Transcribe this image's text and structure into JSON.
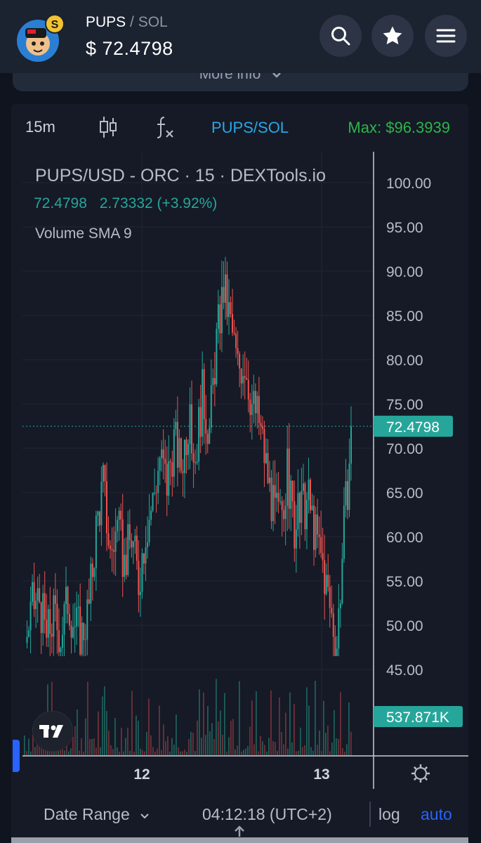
{
  "header": {
    "base_symbol": "PUPS",
    "separator": "/",
    "quote_symbol": "SOL",
    "price": "$ 72.4798",
    "logo_icon": "pups-token-logo",
    "buttons": [
      "search-icon",
      "star-icon",
      "menu-icon"
    ]
  },
  "more_info": {
    "label": "More info"
  },
  "toolbar": {
    "interval": "15m",
    "candle_icon": "candlestick-icon",
    "indicator_icon": "fx-icon",
    "pair": "PUPS/SOL",
    "max_label": "Max:",
    "max_value": "$96.3939"
  },
  "legend": {
    "title": "PUPS/USD - ORC · 15 · DEXTools.io",
    "last_price": "72.4798",
    "change": "2.73332 (+3.92%)",
    "volume_label": "Volume SMA 9"
  },
  "chart_data": {
    "type": "candlestick",
    "title": "PUPS/USD - ORC · 15 · DEXTools.io",
    "ylim": [
      41,
      102
    ],
    "y_ticks": [
      "100.00",
      "95.00",
      "90.00",
      "85.00",
      "80.00",
      "75.00",
      "70.00",
      "65.00",
      "60.00",
      "55.00",
      "50.00",
      "45.00"
    ],
    "x_ticks": [
      "12",
      "13"
    ],
    "last_price": 72.4798,
    "last_price_label": "72.4798",
    "volume_label": "537.871K",
    "up_color": "#26a69a",
    "down_color": "#ef5350",
    "price_path": [
      [
        0,
        48
      ],
      [
        4,
        52
      ],
      [
        8,
        53
      ],
      [
        12,
        48.5
      ],
      [
        16,
        51
      ],
      [
        20,
        49
      ],
      [
        24,
        53
      ],
      [
        28,
        50
      ],
      [
        32,
        49
      ],
      [
        36,
        52
      ],
      [
        40,
        61
      ],
      [
        44,
        66
      ],
      [
        48,
        58
      ],
      [
        52,
        61
      ],
      [
        56,
        57
      ],
      [
        60,
        60
      ],
      [
        64,
        55
      ],
      [
        68,
        61
      ],
      [
        72,
        64
      ],
      [
        76,
        69
      ],
      [
        80,
        66
      ],
      [
        84,
        71
      ],
      [
        88,
        68
      ],
      [
        92,
        73
      ],
      [
        96,
        69
      ],
      [
        100,
        76
      ],
      [
        104,
        72
      ],
      [
        108,
        82
      ],
      [
        112,
        88
      ],
      [
        116,
        84
      ],
      [
        120,
        79
      ],
      [
        124,
        80
      ],
      [
        128,
        75
      ],
      [
        132,
        73
      ],
      [
        136,
        68
      ],
      [
        140,
        63
      ],
      [
        144,
        62
      ],
      [
        148,
        67
      ],
      [
        152,
        61
      ],
      [
        156,
        63
      ],
      [
        160,
        64
      ],
      [
        164,
        60
      ],
      [
        168,
        57
      ],
      [
        172,
        52
      ],
      [
        176,
        48
      ],
      [
        180,
        61
      ],
      [
        184,
        71
      ]
    ]
  },
  "bottom": {
    "date_range": "Date Range",
    "time": "04:12:18 (UTC+2)",
    "log": "log",
    "auto": "auto"
  }
}
